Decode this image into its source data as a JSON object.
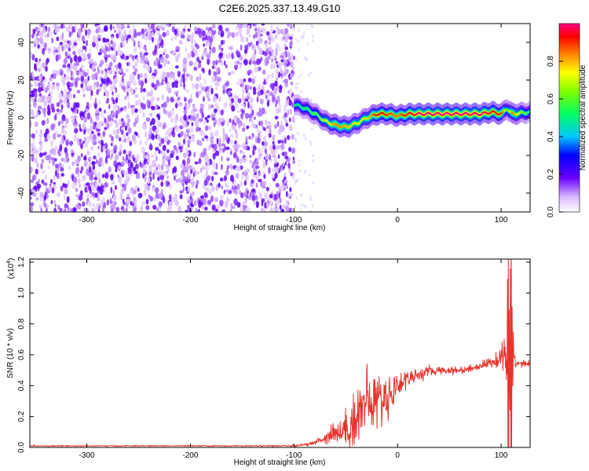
{
  "title": "C2E6.2025.337.13.49.G10",
  "chart_data": [
    {
      "type": "heatmap",
      "xlabel": "Height of straight line (km)",
      "ylabel": "Frequency (Hz)",
      "xlim": [
        -355,
        128
      ],
      "ylim": [
        -50,
        50
      ],
      "x_ticks": [
        -300,
        -200,
        -100,
        0,
        100
      ],
      "y_ticks": [
        -40,
        -20,
        0,
        20,
        40
      ],
      "x_tick_labels": [
        "-300",
        "-200",
        "-100",
        "0",
        "100"
      ],
      "y_tick_labels": [
        "-40",
        "-20",
        "0",
        "20",
        "40"
      ],
      "colorbar": {
        "label": "Normalized spectral amplitude",
        "range": [
          0,
          1
        ],
        "ticks": [
          0.0,
          0.2,
          0.4,
          0.6,
          0.8
        ],
        "tick_labels": [
          "0.0",
          "0.2",
          "0.4",
          "0.6",
          "0.8"
        ],
        "colormap": "rainbow (white, purple, blue, cyan, green, yellow, orange, red, magenta)"
      },
      "noise_region_x": [
        -355,
        -100
      ],
      "ridge": {
        "x": [
          -100,
          -90,
          -80,
          -70,
          -60,
          -50,
          -40,
          -30,
          -20,
          -10,
          0,
          10,
          20,
          40,
          60,
          80,
          90,
          100,
          105,
          110,
          128
        ],
        "freq": [
          7,
          5,
          2,
          -2,
          -4,
          -5,
          -3,
          0,
          2,
          2,
          1,
          2,
          2,
          2,
          2,
          2,
          3,
          2,
          5,
          2,
          3
        ],
        "amplitude": [
          0.5,
          0.55,
          0.6,
          0.7,
          0.85,
          0.8,
          0.75,
          0.75,
          0.95,
          0.9,
          0.85,
          0.95,
          1.0,
          1.0,
          1.0,
          1.0,
          0.95,
          0.9,
          0.6,
          0.85,
          0.5
        ]
      }
    },
    {
      "type": "line",
      "xlabel": "Height of straight line (km)",
      "ylabel": "SNR (10 * v/v)",
      "y_multiplier_label": "(x10",
      "y_multiplier_exp": "4",
      "y_multiplier_close": ")",
      "xlim": [
        -355,
        128
      ],
      "ylim": [
        0,
        1.22
      ],
      "x_ticks": [
        -300,
        -200,
        -100,
        0,
        100
      ],
      "y_ticks": [
        0.0,
        0.2,
        0.4,
        0.6,
        0.8,
        1.0,
        1.2
      ],
      "x_tick_labels": [
        "-300",
        "-200",
        "-100",
        "0",
        "100"
      ],
      "y_tick_labels": [
        "0.0",
        "0.2",
        "0.4",
        "0.6",
        "0.8",
        "1.0",
        "1.2"
      ],
      "series": [
        {
          "color": "#e8322c",
          "x": [
            -355,
            -300,
            -250,
            -200,
            -150,
            -110,
            -100,
            -95,
            -90,
            -85,
            -80,
            -75,
            -70,
            -65,
            -60,
            -58,
            -55,
            -50,
            -45,
            -40,
            -35,
            -30,
            -25,
            -20,
            -15,
            -10,
            -5,
            0,
            5,
            10,
            15,
            20,
            30,
            40,
            50,
            60,
            70,
            80,
            90,
            95,
            100,
            103,
            106,
            108,
            110,
            112,
            115,
            120,
            128
          ],
          "y": [
            0.01,
            0.01,
            0.01,
            0.01,
            0.01,
            0.01,
            0.01,
            0.015,
            0.02,
            0.02,
            0.03,
            0.05,
            0.06,
            0.09,
            0.12,
            0.08,
            0.1,
            0.12,
            0.15,
            0.2,
            0.25,
            0.3,
            0.28,
            0.32,
            0.3,
            0.33,
            0.36,
            0.4,
            0.43,
            0.45,
            0.46,
            0.47,
            0.49,
            0.5,
            0.5,
            0.5,
            0.51,
            0.53,
            0.55,
            0.56,
            0.58,
            0.6,
            0.66,
            0.5,
            0.58,
            0.56,
            0.55,
            0.55,
            0.54
          ],
          "noise_amplitude": [
            0.003,
            0.003,
            0.003,
            0.003,
            0.003,
            0.004,
            0.005,
            0.006,
            0.008,
            0.01,
            0.015,
            0.02,
            0.03,
            0.05,
            0.08,
            0.05,
            0.07,
            0.1,
            0.13,
            0.18,
            0.18,
            0.17,
            0.16,
            0.15,
            0.13,
            0.12,
            0.1,
            0.08,
            0.06,
            0.05,
            0.04,
            0.03,
            0.03,
            0.02,
            0.02,
            0.02,
            0.02,
            0.02,
            0.03,
            0.04,
            0.06,
            0.12,
            0.4,
            0.45,
            0.6,
            0.1,
            0.02,
            0.02,
            0.02
          ]
        }
      ]
    }
  ]
}
